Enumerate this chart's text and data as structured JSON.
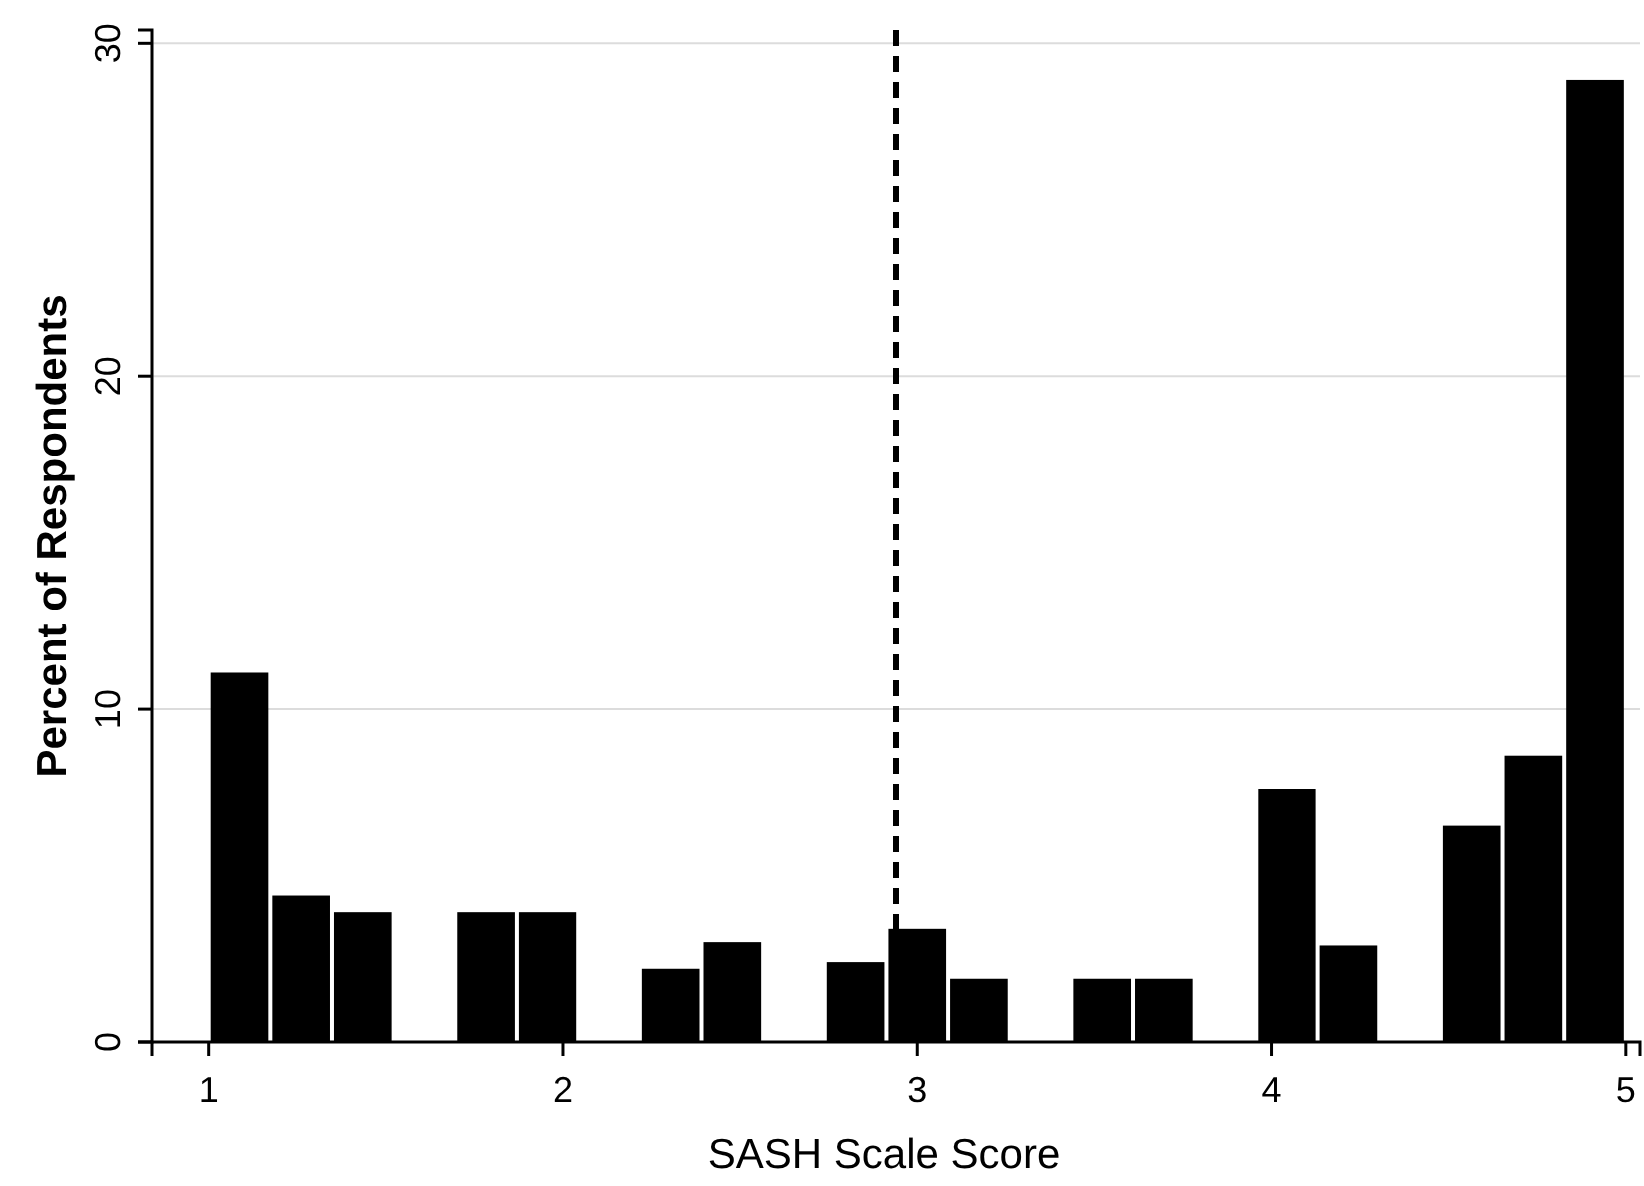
{
  "chart_data": {
    "type": "histogram",
    "xlabel": "SASH Scale Score",
    "ylabel": "Percent of Respondents",
    "bins": [
      1,
      1.174,
      1.348,
      1.522,
      1.696,
      1.87,
      2.043,
      2.217,
      2.391,
      2.565,
      2.739,
      2.913,
      3.087,
      3.261,
      3.435,
      3.609,
      3.783,
      3.957,
      4.13,
      4.304,
      4.478,
      4.652,
      4.826,
      5
    ],
    "values": [
      11.1,
      4.4,
      3.9,
      0,
      3.9,
      3.9,
      0,
      2.2,
      3.0,
      0,
      2.4,
      3.4,
      1.9,
      0,
      1.9,
      1.9,
      0,
      7.6,
      2.9,
      0,
      6.5,
      8.6,
      28.9
    ],
    "color": "#000000",
    "xlim": [
      0.84,
      5.04
    ],
    "xticks": [
      1,
      2,
      3,
      4,
      5
    ],
    "ylim": [
      0,
      30.4
    ],
    "yticks": [
      0,
      10,
      20,
      30
    ],
    "grid": "y",
    "ref_lines": [
      {
        "axis": "x",
        "value": 2.94,
        "line_style": "dashed",
        "color": "#000000"
      }
    ]
  }
}
